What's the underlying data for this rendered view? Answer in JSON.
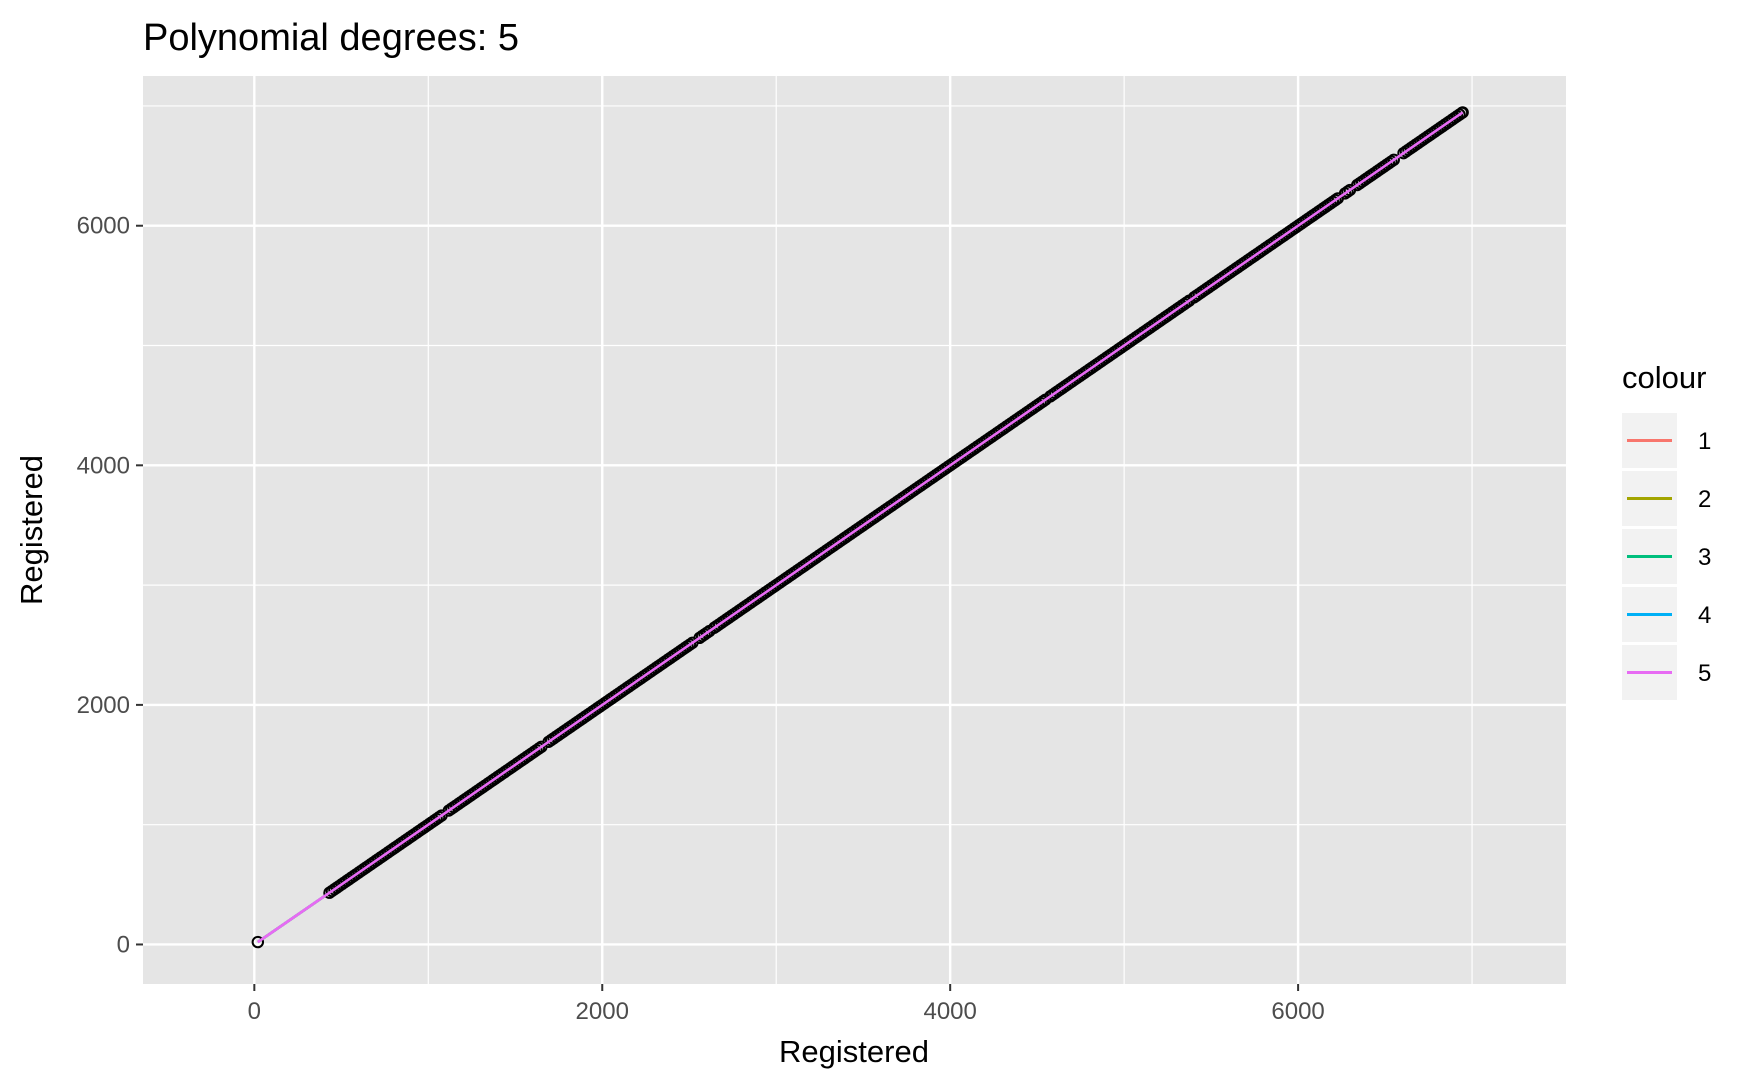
{
  "chart_data": {
    "type": "scatter",
    "title": "Polynomial degrees: 5",
    "xlabel": "Registered",
    "ylabel": "Registered",
    "xlim": [
      -640,
      7540
    ],
    "ylim": [
      -330,
      7250
    ],
    "x_ticks": [
      0,
      2000,
      4000,
      6000
    ],
    "y_ticks": [
      0,
      2000,
      4000,
      6000
    ],
    "x_tick_labels": [
      "0",
      "2000",
      "4000",
      "6000"
    ],
    "y_tick_labels": [
      "0",
      "2000",
      "4000",
      "6000"
    ],
    "grid": true,
    "background_color": "#e5e5e5",
    "grid_color": "#ffffff",
    "point_color": "#000000",
    "points": {
      "x_min": 20,
      "x_max": 6946,
      "isolated": [
        20
      ],
      "dense_range": [
        432,
        6946
      ],
      "relation": "y = x"
    },
    "legend": {
      "title": "colour",
      "position": "right",
      "entries": [
        {
          "label": "1",
          "color": "#f8766d"
        },
        {
          "label": "2",
          "color": "#a3a500"
        },
        {
          "label": "3",
          "color": "#00bf7d"
        },
        {
          "label": "4",
          "color": "#00b0f6"
        },
        {
          "label": "5",
          "color": "#e76bf3"
        }
      ]
    },
    "series": [
      {
        "name": "1",
        "color": "#f8766d",
        "x": [
          20,
          6946
        ],
        "y": [
          20,
          6946
        ]
      },
      {
        "name": "2",
        "color": "#a3a500",
        "x": [
          20,
          6946
        ],
        "y": [
          20,
          6946
        ]
      },
      {
        "name": "3",
        "color": "#00bf7d",
        "x": [
          20,
          6946
        ],
        "y": [
          20,
          6946
        ]
      },
      {
        "name": "4",
        "color": "#00b0f6",
        "x": [
          20,
          432,
          6946
        ],
        "y": [
          20,
          432,
          6946
        ]
      },
      {
        "name": "5",
        "color": "#e76bf3",
        "x": [
          20,
          432,
          6946
        ],
        "y": [
          20,
          432,
          6946
        ]
      }
    ]
  }
}
